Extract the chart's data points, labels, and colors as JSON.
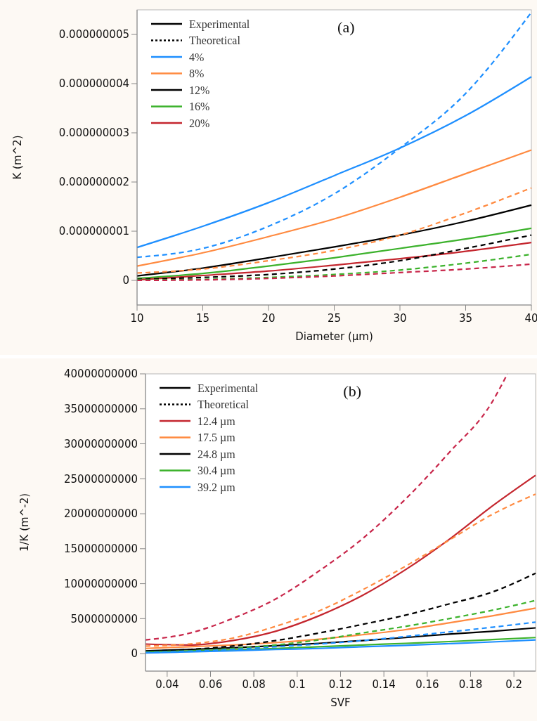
{
  "chart_data": [
    {
      "type": "line",
      "title": "(a)",
      "xlabel": "Diameter (µm)",
      "ylabel": "K (m^2)",
      "annotations": [
        "Experimental",
        "Theoretical"
      ],
      "legend": "top left",
      "grid": false,
      "x": [
        10,
        15,
        20,
        25,
        30,
        35,
        40
      ],
      "xlim": [
        10,
        40
      ],
      "xticks": [
        10,
        15,
        20,
        25,
        30,
        35,
        40
      ],
      "ylim": [
        -5e-10,
        5.5e-09
      ],
      "yticks": [
        {
          "value": 0,
          "label": "0"
        },
        {
          "value": 1e-09,
          "label": "0.000000001"
        },
        {
          "value": 2e-09,
          "label": "0.000000002"
        },
        {
          "value": 3e-09,
          "label": "0.000000003"
        },
        {
          "value": 4e-09,
          "label": "0.000000004"
        },
        {
          "value": 5e-09,
          "label": "0.000000005"
        }
      ],
      "series": [
        {
          "name": "4%",
          "color": "#1e8fff",
          "line_style": "solid",
          "values": [
            6.7e-10,
            1.1e-09,
            1.58e-09,
            2.13e-09,
            2.69e-09,
            3.35e-09,
            4.14e-09
          ]
        },
        {
          "name": "8%",
          "color": "#ff8a40",
          "line_style": "solid",
          "values": [
            2.9e-10,
            5.6e-10,
            8.9e-10,
            1.25e-09,
            1.69e-09,
            2.17e-09,
            2.65e-09
          ]
        },
        {
          "name": "12%",
          "color": "#000000",
          "line_style": "solid",
          "values": [
            9e-11,
            2.5e-10,
            4.6e-10,
            6.8e-10,
            9.2e-10,
            1.2e-09,
            1.53e-09
          ]
        },
        {
          "name": "16%",
          "color": "#3cb22c",
          "line_style": "solid",
          "values": [
            4e-11,
            1.4e-10,
            2.9e-10,
            4.6e-10,
            6.5e-10,
            8.4e-10,
            1.06e-09
          ]
        },
        {
          "name": "20%",
          "color": "#c4262e",
          "line_style": "solid",
          "values": [
            1e-11,
            1e-10,
            1.9e-10,
            3.1e-10,
            4.4e-10,
            5.9e-10,
            7.7e-10
          ]
        },
        {
          "color": "#1e8fff",
          "line_style": "dashed",
          "values": [
            4.7e-10,
            6.5e-10,
            1.1e-09,
            1.76e-09,
            2.69e-09,
            3.8e-09,
            5.45e-09
          ]
        },
        {
          "color": "#ff8a40",
          "line_style": "dashed",
          "values": [
            1.5e-10,
            2.3e-10,
            4e-10,
            6.1e-10,
            9.2e-10,
            1.37e-09,
            1.88e-09
          ]
        },
        {
          "color": "#000000",
          "line_style": "dashed",
          "values": [
            2e-11,
            6e-11,
            1.2e-10,
            2.3e-10,
            4e-10,
            6.5e-10,
            9.2e-10
          ]
        },
        {
          "color": "#3cb22c",
          "line_style": "dashed",
          "values": [
            1e-11,
            2e-11,
            6e-11,
            1.2e-10,
            2.1e-10,
            3.5e-10,
            5.3e-10
          ]
        },
        {
          "color": "#c8264a",
          "line_style": "dashed",
          "values": [
            0,
            1e-11,
            4e-11,
            9e-11,
            1.6e-10,
            2.3e-10,
            3.3e-10
          ]
        }
      ]
    },
    {
      "type": "line",
      "title": "(b)",
      "xlabel": "SVF",
      "ylabel": "1/K (m^-2)",
      "annotations": [
        "Experimental",
        "Theoretical"
      ],
      "legend": "top left",
      "grid": false,
      "x": [
        0.03,
        0.05,
        0.07,
        0.09,
        0.11,
        0.13,
        0.15,
        0.17,
        0.19,
        0.21
      ],
      "xlim": [
        0.03,
        0.21
      ],
      "xticks": [
        0.04,
        0.06,
        0.08,
        0.1,
        0.12,
        0.14,
        0.16,
        0.18,
        0.2
      ],
      "ylim": [
        -2500000000,
        40000000000
      ],
      "yticks": [
        0,
        5000000000,
        10000000000,
        15000000000,
        20000000000,
        25000000000,
        30000000000,
        35000000000,
        40000000000
      ],
      "series": [
        {
          "name": "12.4 µm",
          "color": "#c4262e",
          "line_style": "solid",
          "values": [
            1370000000,
            1230000000,
            1860000000,
            3190000000,
            5400000000,
            8300000000,
            12000000000,
            16300000000,
            21100000000,
            25500000000
          ]
        },
        {
          "name": "17.5 µm",
          "color": "#ff8a40",
          "line_style": "solid",
          "values": [
            740000000,
            980000000,
            1230000000,
            1570000000,
            2060000000,
            2700000000,
            3430000000,
            4400000000,
            5400000000,
            6500000000
          ]
        },
        {
          "name": "24.8 µm",
          "color": "#000000",
          "line_style": "solid",
          "values": [
            390000000,
            590000000,
            830000000,
            1130000000,
            1470000000,
            1860000000,
            2300000000,
            2790000000,
            3190000000,
            3680000000
          ]
        },
        {
          "name": "30.4 µm",
          "color": "#3cb22c",
          "line_style": "solid",
          "values": [
            250000000,
            390000000,
            540000000,
            740000000,
            980000000,
            1230000000,
            1470000000,
            1720000000,
            2000000000,
            2300000000
          ]
        },
        {
          "name": "39.2 µm",
          "color": "#1e8fff",
          "line_style": "solid",
          "values": [
            100000000,
            250000000,
            390000000,
            590000000,
            740000000,
            980000000,
            1180000000,
            1420000000,
            1670000000,
            1960000000
          ]
        },
        {
          "color": "#c8264a",
          "line_style": "dashed",
          "x": [
            0.03,
            0.05,
            0.07,
            0.09,
            0.11,
            0.13,
            0.15,
            0.17,
            0.19,
            0.197
          ],
          "values": [
            1960000000,
            2900000000,
            5000000000,
            7800000000,
            11800000000,
            16400000000,
            22100000000,
            28700000000,
            36000000000,
            40000000000
          ]
        },
        {
          "color": "#ff8a40",
          "line_style": "dashed",
          "values": [
            1080000000,
            1370000000,
            2200000000,
            3900000000,
            6100000000,
            9100000000,
            12500000000,
            16200000000,
            19900000000,
            22800000000
          ]
        },
        {
          "color": "#000000",
          "line_style": "dashed",
          "values": [
            340000000,
            590000000,
            1080000000,
            1860000000,
            2940000000,
            4170000000,
            5500000000,
            7100000000,
            8800000000,
            11500000000
          ]
        },
        {
          "color": "#3cb22c",
          "line_style": "dashed",
          "values": [
            250000000,
            390000000,
            740000000,
            1230000000,
            1960000000,
            2940000000,
            3900000000,
            5000000000,
            6200000000,
            7600000000
          ]
        },
        {
          "color": "#1e8fff",
          "line_style": "dashed",
          "values": [
            150000000,
            340000000,
            590000000,
            980000000,
            1370000000,
            1860000000,
            2450000000,
            3100000000,
            3770000000,
            4500000000
          ]
        }
      ]
    }
  ]
}
